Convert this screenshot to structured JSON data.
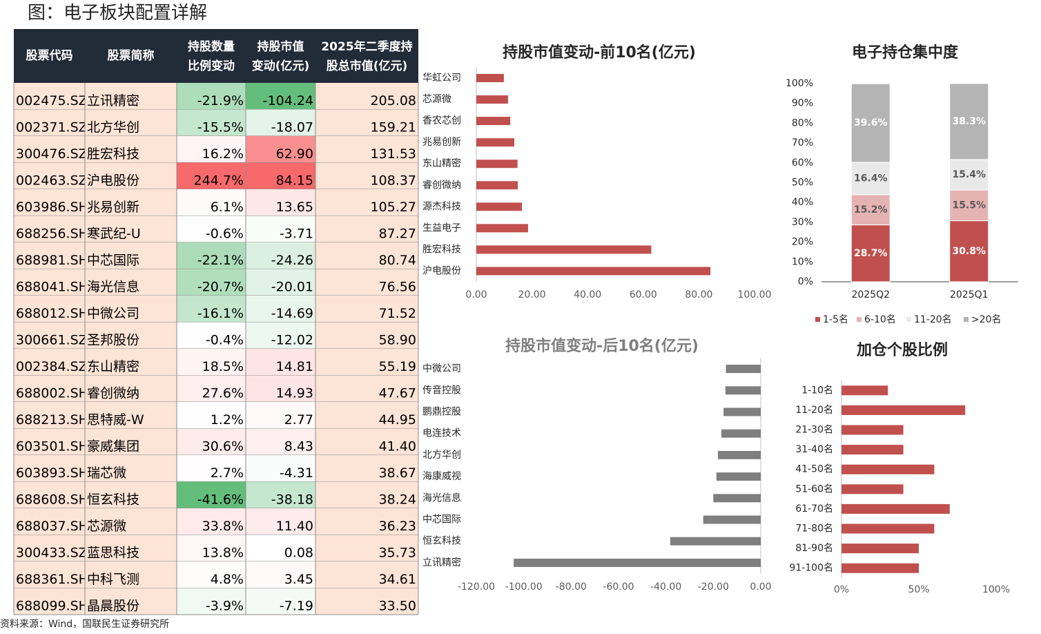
{
  "title": "图：电子板块配置详解",
  "source": "资料来源：Wind，国联民生证券研究所",
  "table": {
    "header": [
      [
        "股票代码"
      ],
      [
        "股票简称"
      ],
      [
        "持股数量",
        "比例变动"
      ],
      [
        "持股市值",
        "变动(亿元)"
      ],
      [
        "2025年二季度持",
        "股总市值(亿元)"
      ]
    ],
    "header_color": "#222b38",
    "cell_color": "#fce4d6",
    "heat_colors": {
      "negative": "#63be7b",
      "positive": "#f8696b"
    },
    "rows": [
      [
        "002475.SZ",
        "立讯精密",
        "-21.9%",
        "-104.24",
        "205.08"
      ],
      [
        "002371.SZ",
        "北方华创",
        "-15.5%",
        "-18.07",
        "159.21"
      ],
      [
        "300476.SZ",
        "胜宏科技",
        "16.2%",
        "62.90",
        "131.53"
      ],
      [
        "002463.SZ",
        "沪电股份",
        "244.7%",
        "84.15",
        "108.37"
      ],
      [
        "603986.SH",
        "兆易创新",
        "6.1%",
        "13.65",
        "105.27"
      ],
      [
        "688256.SH",
        "寒武纪-U",
        "-0.6%",
        "-3.71",
        "87.27"
      ],
      [
        "688981.SH",
        "中芯国际",
        "-22.1%",
        "-24.26",
        "80.74"
      ],
      [
        "688041.SH",
        "海光信息",
        "-20.7%",
        "-20.01",
        "76.56"
      ],
      [
        "688012.SH",
        "中微公司",
        "-16.1%",
        "-14.69",
        "71.52"
      ],
      [
        "300661.SZ",
        "圣邦股份",
        "-0.4%",
        "-12.02",
        "58.90"
      ],
      [
        "002384.SZ",
        "东山精密",
        "18.5%",
        "14.81",
        "55.19"
      ],
      [
        "688002.SH",
        "睿创微纳",
        "27.6%",
        "14.93",
        "47.67"
      ],
      [
        "688213.SH",
        "思特威-W",
        "1.2%",
        "2.77",
        "44.95"
      ],
      [
        "603501.SH",
        "豪威集团",
        "30.6%",
        "8.43",
        "41.40"
      ],
      [
        "603893.SH",
        "瑞芯微",
        "2.7%",
        "-4.31",
        "38.67"
      ],
      [
        "688608.SH",
        "恒玄科技",
        "-41.6%",
        "-38.18",
        "38.24"
      ],
      [
        "688037.SH",
        "芯源微",
        "33.8%",
        "11.40",
        "36.23"
      ],
      [
        "300433.SZ",
        "蓝思科技",
        "13.8%",
        "0.08",
        "35.73"
      ],
      [
        "688361.SH",
        "中科飞测",
        "4.8%",
        "3.45",
        "34.61"
      ],
      [
        "688099.SH",
        "晶晨股份",
        "-3.9%",
        "-7.19",
        "33.50"
      ]
    ]
  },
  "chart_data": [
    {
      "type": "barh",
      "title": "持股市值变动-前10名(亿元)",
      "title_color": "#262626",
      "categories": [
        "华虹公司",
        "芯源微",
        "香农芯创",
        "兆易创新",
        "东山精密",
        "睿创微纳",
        "源杰科技",
        "生益电子",
        "胜宏科技",
        "沪电股份"
      ],
      "values": [
        9.9,
        11.4,
        12.2,
        13.65,
        14.81,
        14.93,
        16.4,
        18.6,
        62.9,
        84.15
      ],
      "color": "#c0504d",
      "xlim": [
        0,
        100
      ],
      "xticks": [
        {
          "value": 0,
          "label": "0.00"
        },
        {
          "value": 20,
          "label": "20.00"
        },
        {
          "value": 40,
          "label": "40.00"
        },
        {
          "value": 60,
          "label": "60.00"
        },
        {
          "value": 80,
          "label": "80.00"
        },
        {
          "value": 100,
          "label": "100.00"
        }
      ]
    },
    {
      "type": "barh",
      "title": "持股市值变动-后10名(亿元)",
      "title_color": "#7f7f7f",
      "categories": [
        "中微公司",
        "传音控股",
        "鹏鼎控股",
        "电连技术",
        "北方华创",
        "海康威视",
        "海光信息",
        "中芯国际",
        "恒玄科技",
        "立讯精密"
      ],
      "values": [
        -14.69,
        -14.9,
        -15.7,
        -16.6,
        -18.07,
        -18.7,
        -20.01,
        -24.26,
        -38.18,
        -104.24
      ],
      "color": "#7f7f7f",
      "xlim": [
        -120,
        0
      ],
      "xticks": [
        {
          "value": -120,
          "label": "-120.00"
        },
        {
          "value": -100,
          "label": "-100.00"
        },
        {
          "value": -80,
          "label": "-80.00"
        },
        {
          "value": -60,
          "label": "-60.00"
        },
        {
          "value": -40,
          "label": "-40.00"
        },
        {
          "value": -20,
          "label": "-20.00"
        },
        {
          "value": 0,
          "label": "0.00"
        }
      ]
    },
    {
      "type": "stacked_bar",
      "title": "电子持仓集中度",
      "title_color": "#262626",
      "categories": [
        "2025Q2",
        "2025Q1"
      ],
      "series": [
        {
          "name": "1-5名",
          "color": "#c0504d",
          "label_color": "#ffffff",
          "values": [
            28.7,
            30.8
          ],
          "value_labels": [
            "28.7%",
            "30.8%"
          ]
        },
        {
          "name": "6-10名",
          "color": "#e6b3b3",
          "label_color": "#595959",
          "values": [
            15.2,
            15.5
          ],
          "value_labels": [
            "15.2%",
            "15.5%"
          ]
        },
        {
          "name": "11-20名",
          "color": "#e9e9e9",
          "label_color": "#595959",
          "values": [
            16.4,
            15.4
          ],
          "value_labels": [
            "16.4%",
            "15.4%"
          ]
        },
        {
          "name": ">20名",
          "color": "#b4b4b4",
          "label_color": "#ffffff",
          "values": [
            39.6,
            38.3
          ],
          "value_labels": [
            "39.6%",
            "38.3%"
          ]
        }
      ],
      "ylim": [
        0,
        100
      ],
      "yticks": [
        {
          "value": 0,
          "label": "0%"
        },
        {
          "value": 10,
          "label": "10%"
        },
        {
          "value": 20,
          "label": "20%"
        },
        {
          "value": 30,
          "label": "30%"
        },
        {
          "value": 40,
          "label": "40%"
        },
        {
          "value": 50,
          "label": "50%"
        },
        {
          "value": 60,
          "label": "60%"
        },
        {
          "value": 70,
          "label": "70%"
        },
        {
          "value": 80,
          "label": "80%"
        },
        {
          "value": 90,
          "label": "90%"
        },
        {
          "value": 100,
          "label": "100%"
        }
      ],
      "legend": "bottom"
    },
    {
      "type": "barh",
      "title": "加仓个股比例",
      "title_color": "#262626",
      "categories": [
        "1-10名",
        "11-20名",
        "21-30名",
        "31-40名",
        "41-50名",
        "51-60名",
        "61-70名",
        "71-80名",
        "81-90名",
        "91-100名"
      ],
      "values": [
        30,
        80,
        40,
        40,
        60,
        40,
        70,
        60,
        50,
        50
      ],
      "color": "#c0504d",
      "xlim": [
        0,
        100
      ],
      "xticks": [
        {
          "value": 0,
          "label": "0%"
        },
        {
          "value": 50,
          "label": "50%"
        },
        {
          "value": 100,
          "label": "100%"
        }
      ]
    }
  ]
}
